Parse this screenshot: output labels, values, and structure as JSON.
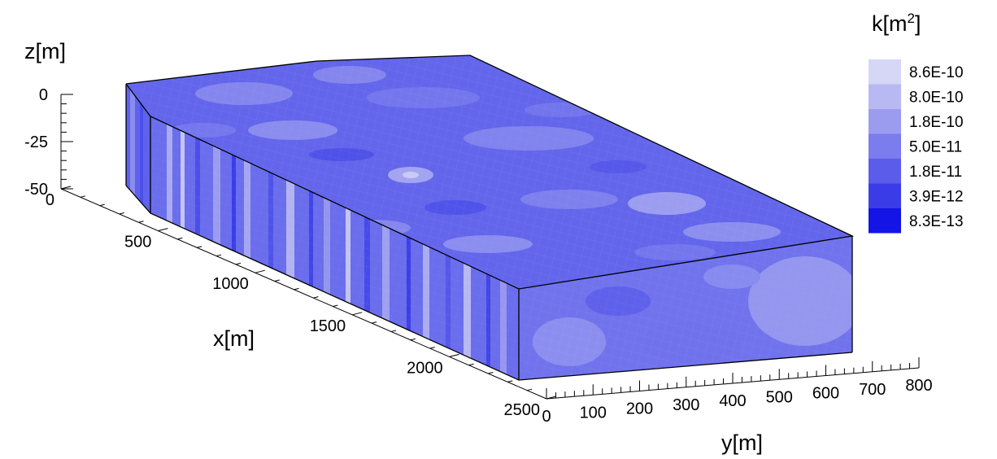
{
  "chart_data": {
    "type": "3d-contour-block",
    "axes": {
      "x": {
        "label": "x[m]",
        "ticks": [
          0,
          500,
          1000,
          1500,
          2000,
          2500
        ],
        "range": [
          0,
          2500
        ]
      },
      "y": {
        "label": "y[m]",
        "ticks": [
          0,
          100,
          200,
          300,
          400,
          500,
          600,
          700,
          800
        ],
        "range": [
          0,
          800
        ]
      },
      "z": {
        "label": "z[m]",
        "ticks": [
          0,
          -25,
          -50
        ],
        "range": [
          -50,
          0
        ]
      }
    },
    "colorbar": {
      "title_base": "k[m",
      "title_exp": "2",
      "title_close": "]",
      "levels": [
        "8.6E-10",
        "8.0E-10",
        "1.8E-10",
        "5.0E-11",
        "1.8E-11",
        "3.9E-12",
        "8.3E-13"
      ],
      "colors": [
        "#d6d6f7",
        "#b8b8f3",
        "#9b9cf0",
        "#7b7ced",
        "#5b5cea",
        "#3a3ce8",
        "#1414e6"
      ]
    }
  }
}
